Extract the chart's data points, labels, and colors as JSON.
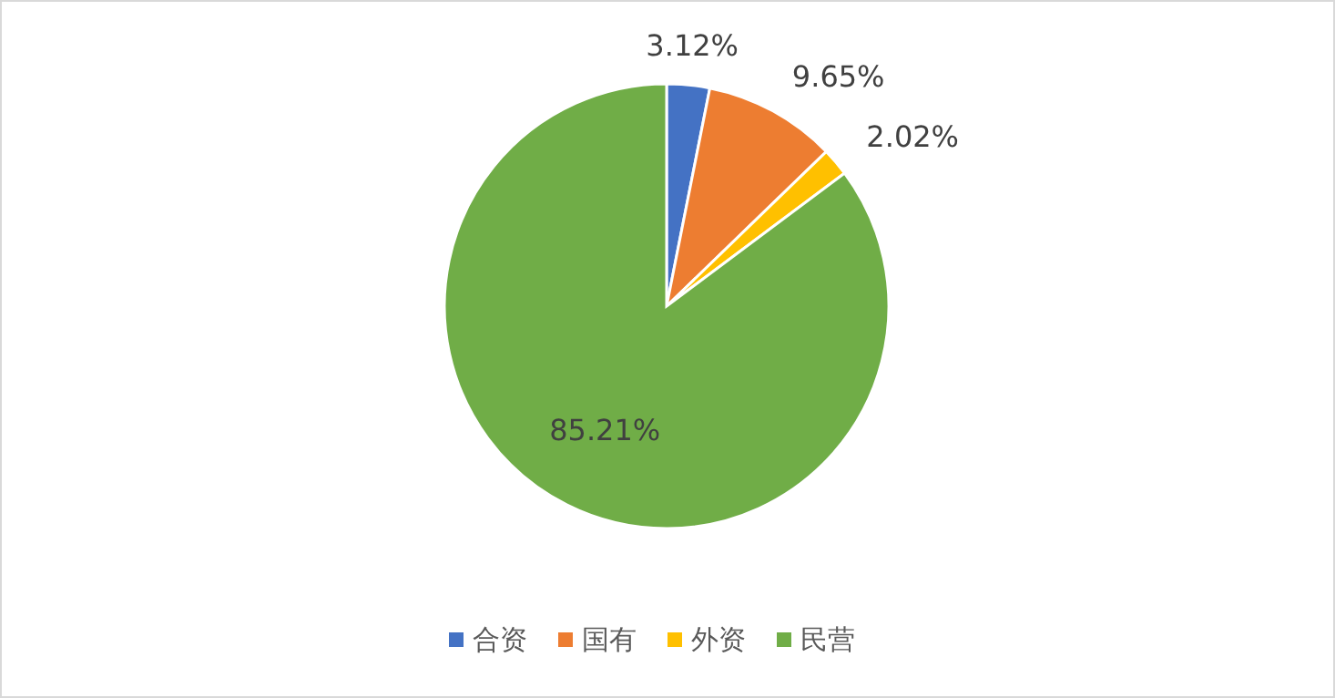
{
  "chart_data": {
    "type": "pie",
    "categories": [
      "合资",
      "国有",
      "外资",
      "民营"
    ],
    "values": [
      3.12,
      9.65,
      2.02,
      85.21
    ],
    "value_labels": [
      "3.12%",
      "9.65%",
      "2.02%",
      "85.21%"
    ],
    "colors": [
      "#4472c4",
      "#ed7d31",
      "#ffc000",
      "#70ad47"
    ],
    "legend": "bottom"
  }
}
